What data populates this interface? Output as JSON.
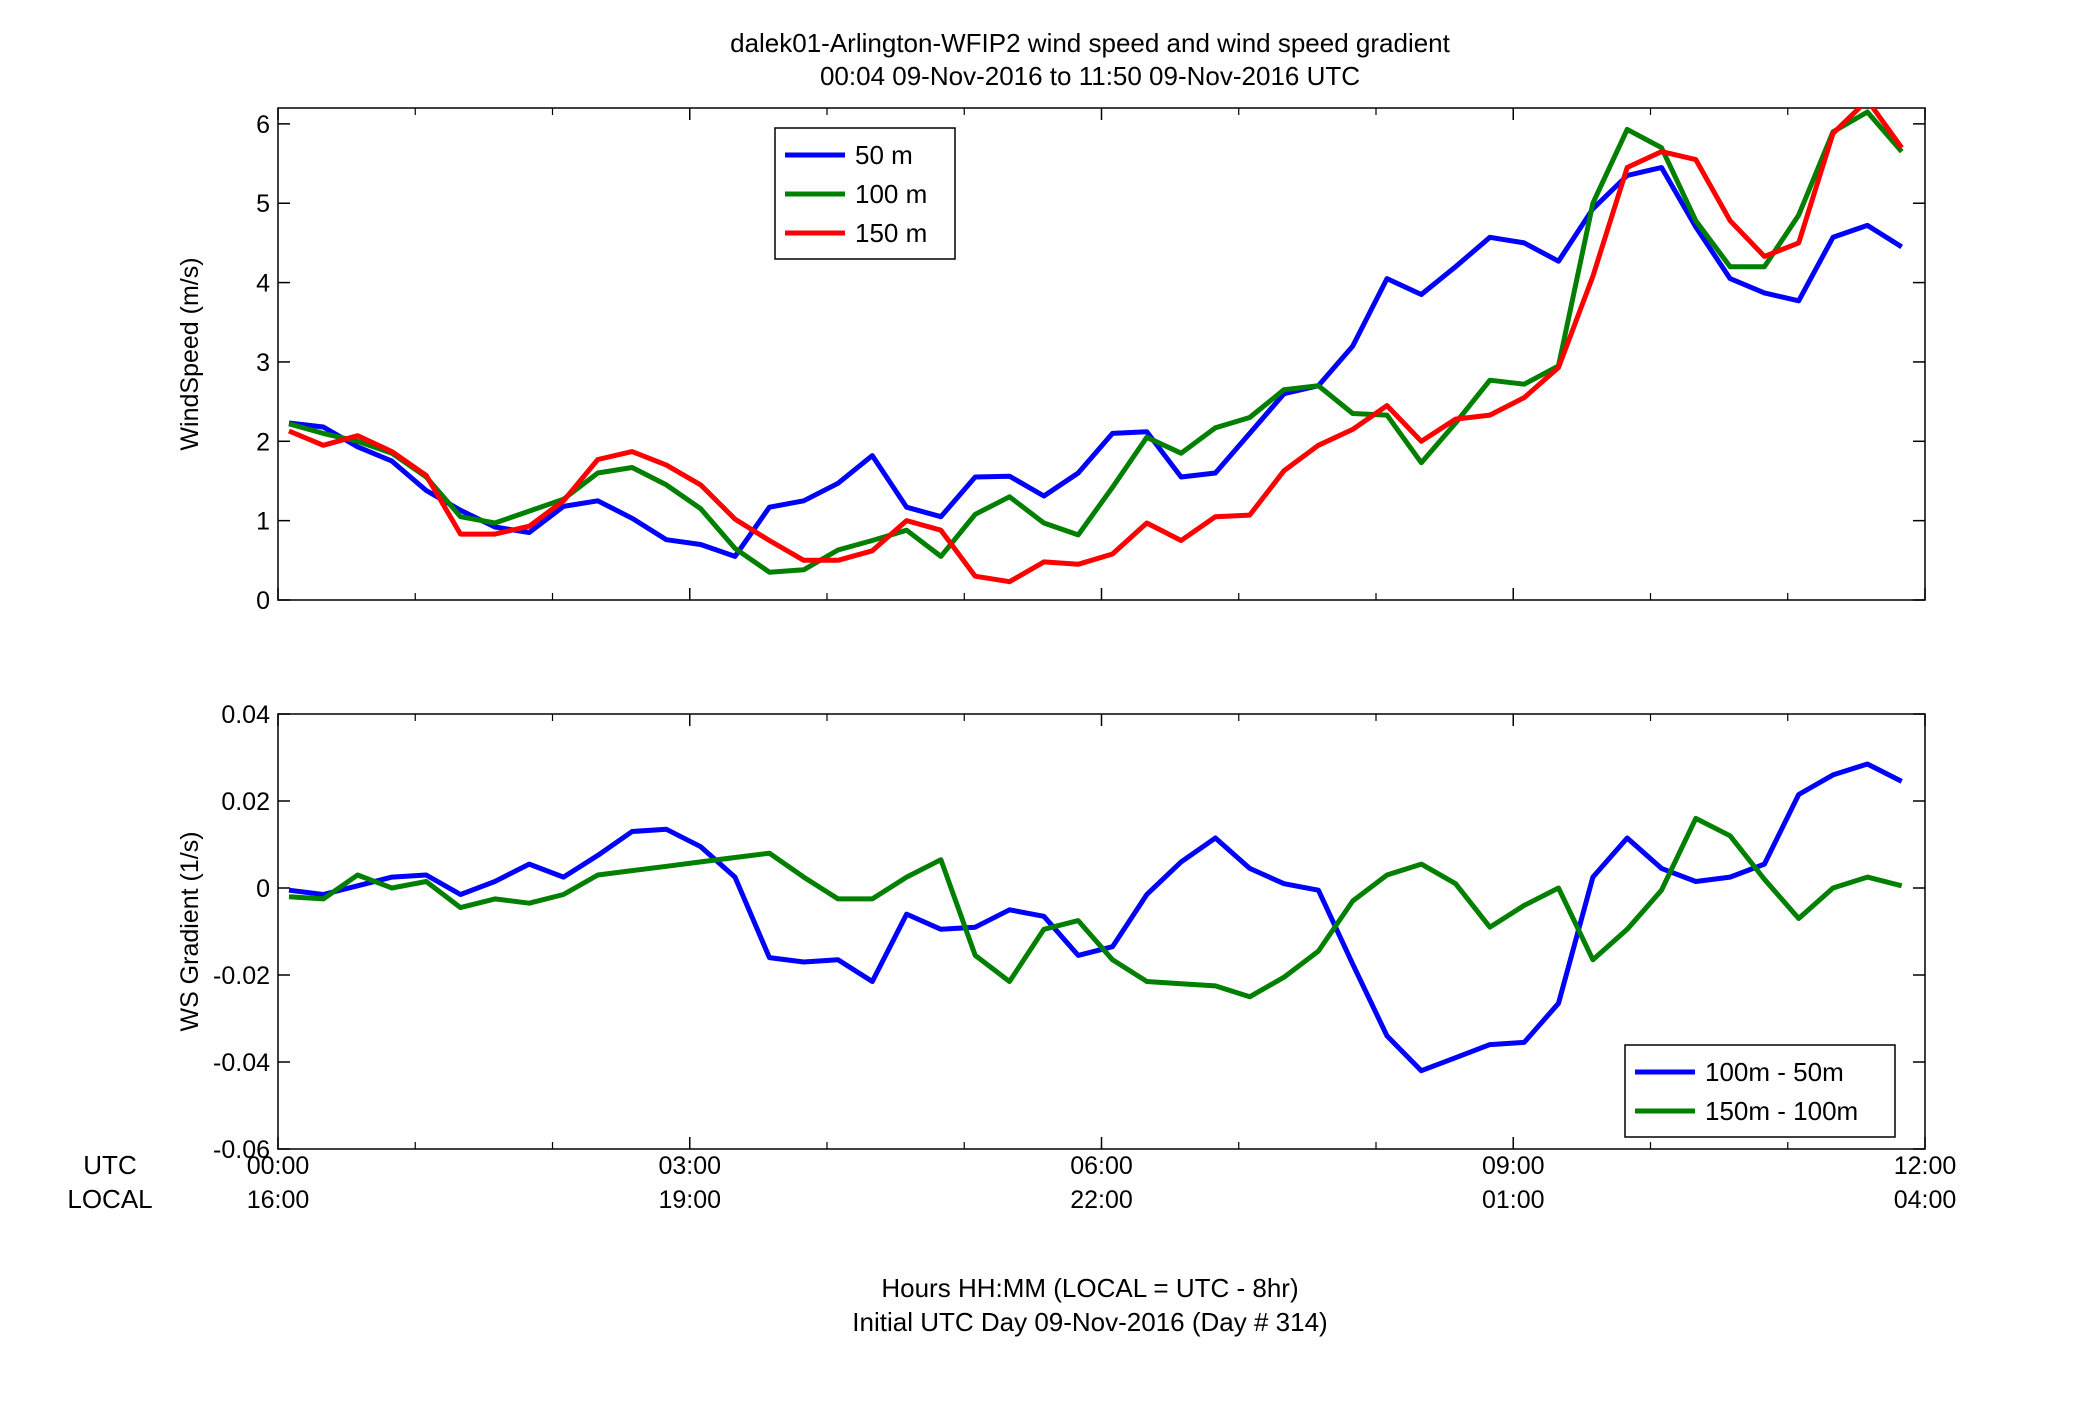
{
  "title_line1": "dalek01-Arlington-WFIP2  wind speed and wind speed gradient",
  "title_line2": "00:04 09-Nov-2016 to 11:50 09-Nov-2016  UTC",
  "xaxis": {
    "utc_label": "UTC",
    "local_label": "LOCAL",
    "ticks_utc": [
      "00:00",
      "03:00",
      "06:00",
      "09:00",
      "12:00"
    ],
    "ticks_local": [
      "16:00",
      "19:00",
      "22:00",
      "01:00",
      "04:00"
    ],
    "tick_hours": [
      0,
      3,
      6,
      9,
      12
    ],
    "label_line1": "Hours HH:MM  (LOCAL = UTC - 8hr)",
    "label_line2": "Initial UTC Day 09-Nov-2016 (Day # 314)"
  },
  "chart_data": [
    {
      "type": "line",
      "ylabel": "WindSpeed (m/s)",
      "xlim": [
        0,
        12
      ],
      "ylim": [
        0,
        6.2
      ],
      "yticks": [
        0,
        1,
        2,
        3,
        4,
        5,
        6
      ],
      "ytick_labels": [
        "0",
        "1",
        "2",
        "3",
        "4",
        "5",
        "6"
      ],
      "legend_position": "top-left",
      "x": [
        0.08,
        0.33,
        0.58,
        0.83,
        1.08,
        1.33,
        1.58,
        1.83,
        2.08,
        2.33,
        2.58,
        2.83,
        3.08,
        3.33,
        3.58,
        3.83,
        4.08,
        4.33,
        4.58,
        4.83,
        5.08,
        5.33,
        5.58,
        5.83,
        6.08,
        6.33,
        6.58,
        6.83,
        7.08,
        7.33,
        7.58,
        7.83,
        8.08,
        8.33,
        8.58,
        8.83,
        9.08,
        9.33,
        9.58,
        9.83,
        10.08,
        10.33,
        10.58,
        10.83,
        11.08,
        11.33,
        11.58,
        11.83
      ],
      "series": [
        {
          "name": "50 m",
          "color": "#0000ff",
          "values": [
            2.23,
            2.18,
            1.93,
            1.75,
            1.38,
            1.13,
            0.92,
            0.85,
            1.18,
            1.25,
            1.03,
            0.76,
            0.7,
            0.55,
            1.17,
            1.25,
            1.47,
            1.82,
            1.17,
            1.05,
            1.55,
            1.56,
            1.31,
            1.6,
            2.1,
            2.12,
            1.55,
            1.6,
            2.1,
            2.6,
            2.7,
            3.2,
            4.05,
            3.85,
            4.2,
            4.57,
            4.5,
            4.27,
            4.93,
            5.35,
            5.45,
            4.7,
            4.05,
            3.87,
            3.77,
            4.57,
            4.72,
            4.45
          ]
        },
        {
          "name": "100 m",
          "color": "#007f00",
          "values": [
            2.22,
            2.1,
            2.0,
            1.85,
            1.55,
            1.05,
            0.97,
            1.12,
            1.27,
            1.6,
            1.67,
            1.45,
            1.15,
            0.65,
            0.35,
            0.38,
            0.63,
            0.75,
            0.88,
            0.55,
            1.08,
            1.3,
            0.97,
            0.82,
            1.42,
            2.05,
            1.85,
            2.17,
            2.3,
            2.65,
            2.7,
            2.35,
            2.33,
            1.73,
            2.23,
            2.77,
            2.72,
            2.95,
            5.0,
            5.93,
            5.7,
            4.78,
            4.2,
            4.2,
            4.85,
            5.9,
            6.15,
            5.65
          ]
        },
        {
          "name": "150 m",
          "color": "#ff0000",
          "values": [
            2.13,
            1.95,
            2.07,
            1.87,
            1.57,
            0.83,
            0.83,
            0.93,
            1.25,
            1.77,
            1.87,
            1.7,
            1.45,
            1.02,
            0.75,
            0.5,
            0.5,
            0.62,
            1.0,
            0.88,
            0.3,
            0.23,
            0.48,
            0.45,
            0.58,
            0.97,
            0.75,
            1.05,
            1.07,
            1.63,
            1.95,
            2.15,
            2.45,
            2.0,
            2.28,
            2.33,
            2.55,
            2.93,
            4.08,
            5.45,
            5.65,
            5.55,
            4.78,
            4.33,
            4.5,
            5.88,
            6.3,
            5.7
          ]
        }
      ]
    },
    {
      "type": "line",
      "ylabel": "WS Gradient (1/s)",
      "xlim": [
        0,
        12
      ],
      "ylim": [
        -0.06,
        0.04
      ],
      "yticks": [
        -0.06,
        -0.04,
        -0.02,
        0,
        0.02,
        0.04
      ],
      "ytick_labels": [
        "-0.06",
        "-0.04",
        "-0.02",
        "0",
        "0.02",
        "0.04"
      ],
      "legend_position": "bottom-right",
      "x": [
        0.08,
        0.33,
        0.58,
        0.83,
        1.08,
        1.33,
        1.58,
        1.83,
        2.08,
        2.33,
        2.58,
        2.83,
        3.08,
        3.33,
        3.58,
        3.83,
        4.08,
        4.33,
        4.58,
        4.83,
        5.08,
        5.33,
        5.58,
        5.83,
        6.08,
        6.33,
        6.58,
        6.83,
        7.08,
        7.33,
        7.58,
        7.83,
        8.08,
        8.33,
        8.58,
        8.83,
        9.08,
        9.33,
        9.58,
        9.83,
        10.08,
        10.33,
        10.58,
        10.83,
        11.08,
        11.33,
        11.58,
        11.83
      ],
      "series": [
        {
          "name": "100m - 50m",
          "color": "#0000ff",
          "values": [
            -0.0005,
            -0.0015,
            0.0005,
            0.0025,
            0.003,
            -0.0015,
            0.0015,
            0.0055,
            0.0025,
            0.0075,
            0.013,
            0.0135,
            0.0095,
            0.0025,
            -0.016,
            -0.017,
            -0.0165,
            -0.0215,
            -0.006,
            -0.0095,
            -0.009,
            -0.005,
            -0.0065,
            -0.0155,
            -0.0135,
            -0.0015,
            0.006,
            0.0115,
            0.0045,
            0.001,
            -0.0005,
            -0.0175,
            -0.034,
            -0.042,
            -0.039,
            -0.036,
            -0.0355,
            -0.0265,
            0.0025,
            0.0115,
            0.0045,
            0.0015,
            0.0025,
            0.0055,
            0.0215,
            0.026,
            0.0285,
            0.0245
          ]
        },
        {
          "name": "150m - 100m",
          "color": "#007f00",
          "values": [
            -0.002,
            -0.0025,
            0.003,
            0.0,
            0.0015,
            -0.0045,
            -0.0025,
            -0.0035,
            -0.0015,
            0.003,
            0.004,
            0.005,
            0.006,
            0.007,
            0.008,
            0.0025,
            -0.0025,
            -0.0025,
            0.0025,
            0.0065,
            -0.0155,
            -0.0215,
            -0.0095,
            -0.0075,
            -0.0165,
            -0.0215,
            -0.022,
            -0.0225,
            -0.025,
            -0.0205,
            -0.0145,
            -0.003,
            0.003,
            0.0055,
            0.001,
            -0.009,
            -0.004,
            0.0,
            -0.0165,
            -0.0095,
            -0.0005,
            0.016,
            0.012,
            0.002,
            -0.007,
            0.0,
            0.0025,
            0.0005
          ]
        }
      ]
    }
  ]
}
